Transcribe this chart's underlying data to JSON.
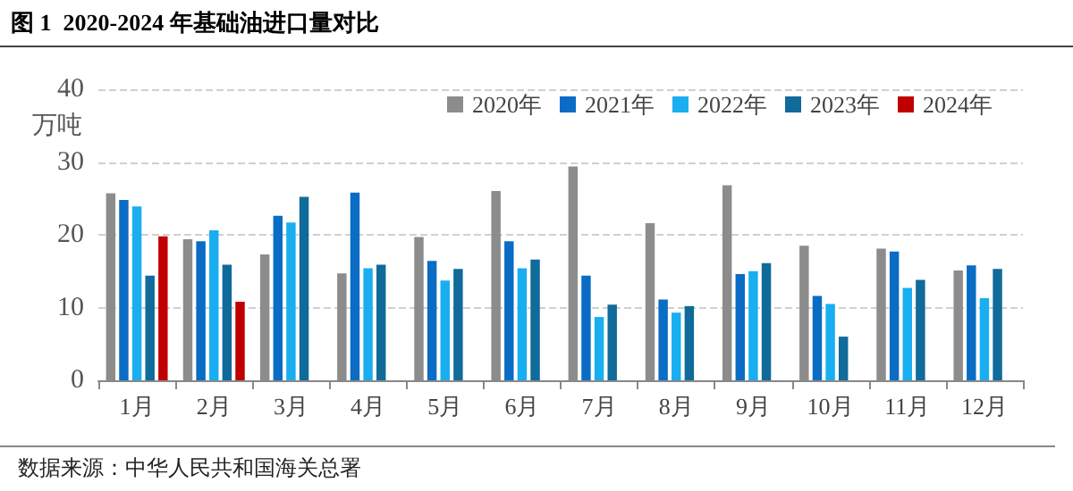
{
  "chart_data": {
    "type": "bar",
    "title": "图 1  2020-2024 年基础油进口量对比",
    "ylabel": "万吨",
    "categories": [
      "1月",
      "2月",
      "3月",
      "4月",
      "5月",
      "6月",
      "7月",
      "8月",
      "9月",
      "10月",
      "11月",
      "12月"
    ],
    "series": [
      {
        "name": "2020年",
        "color": "#8c8c8c",
        "values": [
          25.7,
          19.4,
          17.3,
          14.7,
          19.7,
          26.0,
          29.4,
          21.6,
          26.8,
          18.5,
          18.1,
          15.1
        ]
      },
      {
        "name": "2021年",
        "color": "#0a6cc4",
        "values": [
          24.8,
          19.1,
          22.6,
          25.8,
          16.4,
          19.1,
          14.4,
          11.1,
          14.6,
          11.6,
          17.7,
          15.8
        ]
      },
      {
        "name": "2022年",
        "color": "#19aef0",
        "values": [
          23.9,
          20.6,
          21.7,
          15.4,
          13.7,
          15.4,
          8.7,
          9.3,
          15.0,
          10.5,
          12.7,
          11.3
        ]
      },
      {
        "name": "2023年",
        "color": "#106a9a",
        "values": [
          14.4,
          15.9,
          25.2,
          15.9,
          15.3,
          16.6,
          10.4,
          10.2,
          16.1,
          6.0,
          13.8,
          15.3
        ]
      },
      {
        "name": "2024年",
        "color": "#c00000",
        "values": [
          19.8,
          10.8,
          null,
          null,
          null,
          null,
          null,
          null,
          null,
          null,
          null,
          null
        ]
      }
    ],
    "ylim": [
      0,
      40
    ],
    "yticks": [
      0,
      10,
      20,
      30,
      40
    ],
    "grid": "y",
    "legend": "top right",
    "annotations": [
      "数据来源：中华人民共和国海关总署"
    ]
  }
}
